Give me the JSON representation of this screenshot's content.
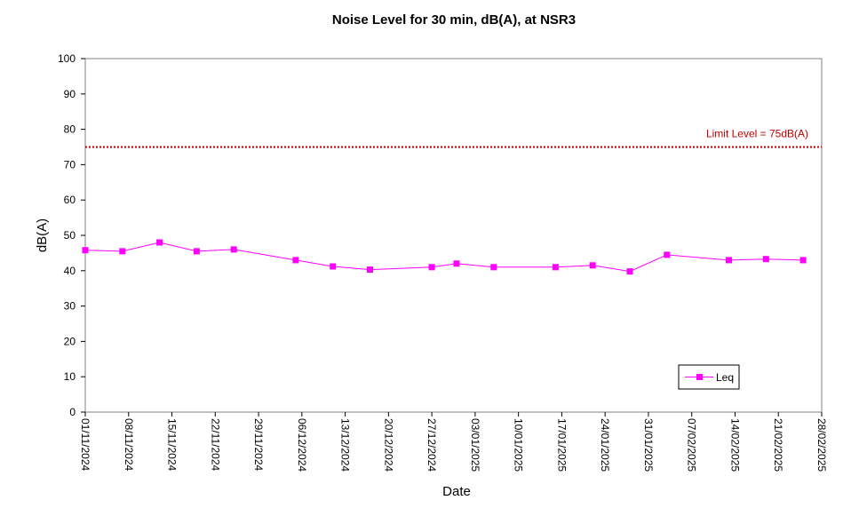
{
  "chart_data": {
    "type": "line",
    "title": "Noise Level for 30 min, dB(A), at NSR3",
    "xlabel": "Date",
    "ylabel": "dB(A)",
    "ylim": [
      0,
      100
    ],
    "yticks": [
      0,
      10,
      20,
      30,
      40,
      50,
      60,
      70,
      80,
      90,
      100
    ],
    "xlim": [
      "01/11/2024",
      "28/02/2025"
    ],
    "xticks": [
      "01/11/2024",
      "08/11/2024",
      "15/11/2024",
      "22/11/2024",
      "29/11/2024",
      "06/12/2024",
      "13/12/2024",
      "20/12/2024",
      "27/12/2024",
      "03/01/2025",
      "10/01/2025",
      "17/01/2025",
      "24/01/2025",
      "31/01/2025",
      "07/02/2025",
      "14/02/2025",
      "21/02/2025",
      "28/02/2025"
    ],
    "grid": false,
    "legend_position": "bottom-right",
    "limit": {
      "value": 75,
      "label": "Limit Level  = 75dB(A)",
      "color": "#c00000"
    },
    "series": [
      {
        "name": "Leq",
        "color": "#ff00ff",
        "points": [
          {
            "x": "01/11/2024",
            "y": 45.8
          },
          {
            "x": "07/11/2024",
            "y": 45.5
          },
          {
            "x": "13/11/2024",
            "y": 48.0
          },
          {
            "x": "19/11/2024",
            "y": 45.5
          },
          {
            "x": "25/11/2024",
            "y": 46.0
          },
          {
            "x": "05/12/2024",
            "y": 43.0
          },
          {
            "x": "11/12/2024",
            "y": 41.2
          },
          {
            "x": "17/12/2024",
            "y": 40.3
          },
          {
            "x": "27/12/2024",
            "y": 41.0
          },
          {
            "x": "31/12/2024",
            "y": 42.0
          },
          {
            "x": "06/01/2025",
            "y": 41.0
          },
          {
            "x": "16/01/2025",
            "y": 41.0
          },
          {
            "x": "22/01/2025",
            "y": 41.5
          },
          {
            "x": "28/01/2025",
            "y": 39.8
          },
          {
            "x": "03/02/2025",
            "y": 44.5
          },
          {
            "x": "13/02/2025",
            "y": 43.0
          },
          {
            "x": "19/02/2025",
            "y": 43.3
          },
          {
            "x": "25/02/2025",
            "y": 43.0
          }
        ]
      }
    ]
  }
}
